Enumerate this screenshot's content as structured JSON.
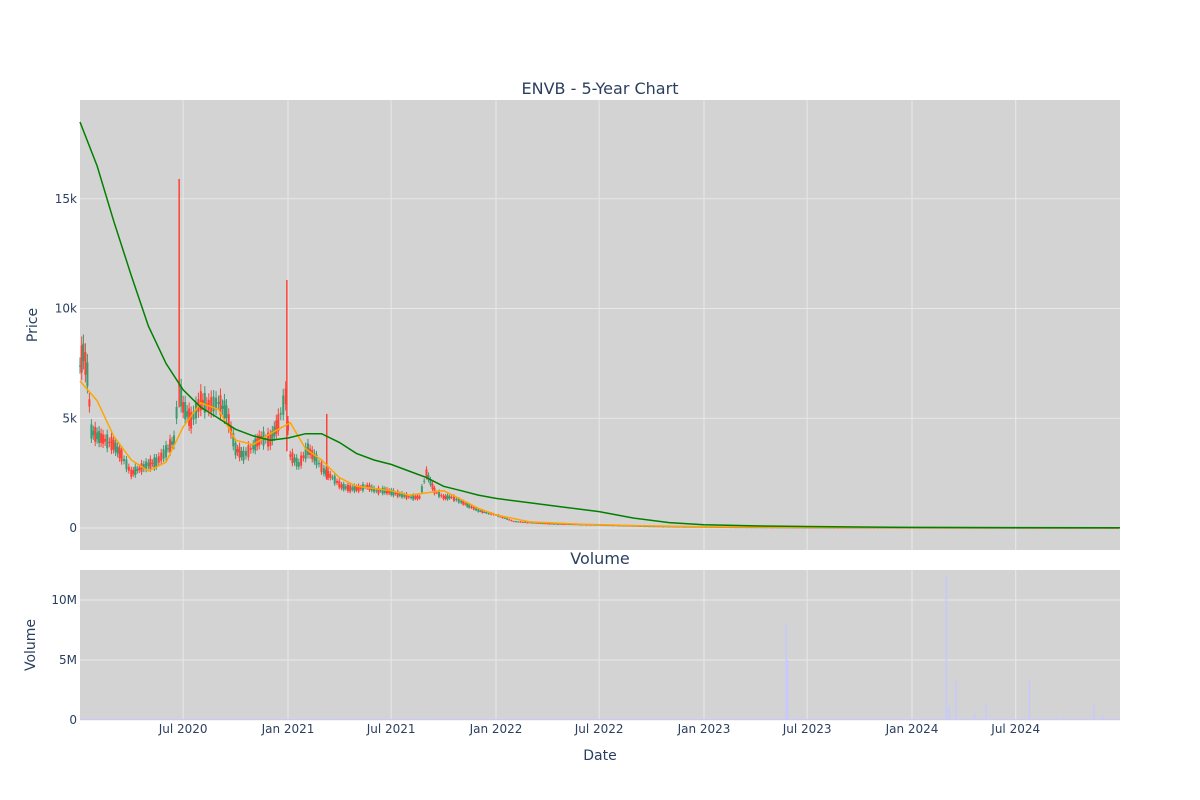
{
  "chart_data": [
    {
      "type": "candlestick",
      "title": "ENVB - 5-Year Chart",
      "ylabel": "Price",
      "xlabel": "",
      "x_range": [
        "2020-01-02",
        "2024-12-31"
      ],
      "ylim": [
        -1000,
        19500
      ],
      "y_ticks": [
        0,
        5000,
        10000,
        15000
      ],
      "y_tick_labels": [
        "0",
        "5k",
        "10k",
        "15k"
      ],
      "x_ticks": [
        "2020-07-01",
        "2021-01-01",
        "2021-07-01",
        "2022-01-01",
        "2022-07-01",
        "2023-01-01",
        "2023-07-01",
        "2024-01-01",
        "2024-07-01"
      ],
      "grid": true,
      "colors": {
        "background": "#d3d3d3",
        "grid": "#e8e8e8",
        "up": "#3d9970",
        "down": "#ff4136",
        "ma_short": "#ffa500",
        "ma_long": "#008000"
      },
      "price_series": [
        {
          "x": "2020-01-02",
          "y": 7400
        },
        {
          "x": "2020-01-08",
          "y": 8000
        },
        {
          "x": "2020-01-15",
          "y": 7000
        },
        {
          "x": "2020-01-22",
          "y": 4400
        },
        {
          "x": "2020-02-01",
          "y": 4200
        },
        {
          "x": "2020-02-15",
          "y": 4000
        },
        {
          "x": "2020-03-01",
          "y": 3800
        },
        {
          "x": "2020-03-15",
          "y": 3300
        },
        {
          "x": "2020-04-01",
          "y": 2500
        },
        {
          "x": "2020-04-15",
          "y": 2700
        },
        {
          "x": "2020-05-01",
          "y": 2900
        },
        {
          "x": "2020-05-15",
          "y": 3000
        },
        {
          "x": "2020-06-01",
          "y": 3500
        },
        {
          "x": "2020-06-15",
          "y": 4000
        },
        {
          "x": "2020-06-24",
          "y": 6500
        },
        {
          "x": "2020-07-01",
          "y": 5500
        },
        {
          "x": "2020-07-15",
          "y": 4900
        },
        {
          "x": "2020-08-01",
          "y": 5800
        },
        {
          "x": "2020-08-15",
          "y": 5600
        },
        {
          "x": "2020-09-01",
          "y": 5700
        },
        {
          "x": "2020-09-15",
          "y": 5300
        },
        {
          "x": "2020-10-01",
          "y": 3600
        },
        {
          "x": "2020-10-15",
          "y": 3300
        },
        {
          "x": "2020-11-01",
          "y": 3700
        },
        {
          "x": "2020-11-15",
          "y": 4100
        },
        {
          "x": "2020-12-01",
          "y": 4000
        },
        {
          "x": "2020-12-15",
          "y": 4800
        },
        {
          "x": "2020-12-28",
          "y": 6000
        },
        {
          "x": "2021-01-05",
          "y": 3300
        },
        {
          "x": "2021-01-20",
          "y": 2900
        },
        {
          "x": "2021-02-05",
          "y": 3600
        },
        {
          "x": "2021-02-20",
          "y": 3100
        },
        {
          "x": "2021-03-05",
          "y": 2600
        },
        {
          "x": "2021-03-20",
          "y": 2300
        },
        {
          "x": "2021-04-05",
          "y": 1900
        },
        {
          "x": "2021-04-20",
          "y": 1800
        },
        {
          "x": "2021-05-05",
          "y": 1800
        },
        {
          "x": "2021-05-20",
          "y": 1900
        },
        {
          "x": "2021-06-05",
          "y": 1700
        },
        {
          "x": "2021-06-20",
          "y": 1700
        },
        {
          "x": "2021-07-05",
          "y": 1600
        },
        {
          "x": "2021-07-20",
          "y": 1500
        },
        {
          "x": "2021-08-05",
          "y": 1400
        },
        {
          "x": "2021-08-20",
          "y": 1400
        },
        {
          "x": "2021-09-01",
          "y": 2500
        },
        {
          "x": "2021-09-15",
          "y": 1700
        },
        {
          "x": "2021-10-01",
          "y": 1400
        },
        {
          "x": "2021-10-15",
          "y": 1400
        },
        {
          "x": "2021-11-01",
          "y": 1200
        },
        {
          "x": "2021-11-15",
          "y": 1000
        },
        {
          "x": "2021-12-01",
          "y": 800
        },
        {
          "x": "2021-12-15",
          "y": 700
        },
        {
          "x": "2022-01-01",
          "y": 600
        },
        {
          "x": "2022-02-01",
          "y": 300
        },
        {
          "x": "2022-03-01",
          "y": 250
        },
        {
          "x": "2022-04-01",
          "y": 200
        },
        {
          "x": "2022-05-01",
          "y": 180
        },
        {
          "x": "2022-06-01",
          "y": 160
        },
        {
          "x": "2022-07-01",
          "y": 140
        },
        {
          "x": "2022-08-01",
          "y": 120
        },
        {
          "x": "2022-10-01",
          "y": 80
        },
        {
          "x": "2022-12-01",
          "y": 60
        },
        {
          "x": "2023-03-01",
          "y": 40
        },
        {
          "x": "2023-06-01",
          "y": 30
        },
        {
          "x": "2023-09-01",
          "y": 25
        },
        {
          "x": "2023-12-01",
          "y": 20
        },
        {
          "x": "2024-03-01",
          "y": 15
        },
        {
          "x": "2024-06-01",
          "y": 10
        },
        {
          "x": "2024-09-01",
          "y": 8
        },
        {
          "x": "2024-12-31",
          "y": 5
        }
      ],
      "spikes": [
        {
          "x": "2020-06-24",
          "high": 15900,
          "low": 5500
        },
        {
          "x": "2020-12-30",
          "high": 11300,
          "low": 3500
        },
        {
          "x": "2021-03-10",
          "high": 5200,
          "low": 2200
        }
      ],
      "ma_short": [
        {
          "x": "2020-01-02",
          "y": 6700
        },
        {
          "x": "2020-02-01",
          "y": 5800
        },
        {
          "x": "2020-03-01",
          "y": 4200
        },
        {
          "x": "2020-04-01",
          "y": 3100
        },
        {
          "x": "2020-05-01",
          "y": 2600
        },
        {
          "x": "2020-06-01",
          "y": 3000
        },
        {
          "x": "2020-07-01",
          "y": 4600
        },
        {
          "x": "2020-08-01",
          "y": 5700
        },
        {
          "x": "2020-09-01",
          "y": 5400
        },
        {
          "x": "2020-10-01",
          "y": 4000
        },
        {
          "x": "2020-11-01",
          "y": 3800
        },
        {
          "x": "2020-12-01",
          "y": 4300
        },
        {
          "x": "2021-01-05",
          "y": 4800
        },
        {
          "x": "2021-02-01",
          "y": 3600
        },
        {
          "x": "2021-03-01",
          "y": 3100
        },
        {
          "x": "2021-04-01",
          "y": 2300
        },
        {
          "x": "2021-05-01",
          "y": 1900
        },
        {
          "x": "2021-06-01",
          "y": 1800
        },
        {
          "x": "2021-07-01",
          "y": 1700
        },
        {
          "x": "2021-08-01",
          "y": 1500
        },
        {
          "x": "2021-09-01",
          "y": 1600
        },
        {
          "x": "2021-10-01",
          "y": 1700
        },
        {
          "x": "2021-11-01",
          "y": 1300
        },
        {
          "x": "2021-12-01",
          "y": 900
        },
        {
          "x": "2022-01-01",
          "y": 600
        },
        {
          "x": "2022-03-01",
          "y": 280
        },
        {
          "x": "2022-06-01",
          "y": 170
        },
        {
          "x": "2022-09-01",
          "y": 110
        },
        {
          "x": "2023-01-01",
          "y": 60
        },
        {
          "x": "2023-06-01",
          "y": 35
        },
        {
          "x": "2024-01-01",
          "y": 20
        },
        {
          "x": "2024-12-31",
          "y": 8
        }
      ],
      "ma_long": [
        {
          "x": "2020-01-02",
          "y": 18500
        },
        {
          "x": "2020-02-01",
          "y": 16500
        },
        {
          "x": "2020-03-01",
          "y": 14000
        },
        {
          "x": "2020-04-01",
          "y": 11500
        },
        {
          "x": "2020-05-01",
          "y": 9200
        },
        {
          "x": "2020-06-01",
          "y": 7500
        },
        {
          "x": "2020-07-01",
          "y": 6300
        },
        {
          "x": "2020-08-01",
          "y": 5500
        },
        {
          "x": "2020-09-01",
          "y": 5000
        },
        {
          "x": "2020-10-01",
          "y": 4500
        },
        {
          "x": "2020-11-01",
          "y": 4200
        },
        {
          "x": "2020-12-01",
          "y": 4000
        },
        {
          "x": "2021-01-01",
          "y": 4100
        },
        {
          "x": "2021-02-01",
          "y": 4300
        },
        {
          "x": "2021-03-01",
          "y": 4300
        },
        {
          "x": "2021-04-01",
          "y": 3900
        },
        {
          "x": "2021-05-01",
          "y": 3400
        },
        {
          "x": "2021-06-01",
          "y": 3100
        },
        {
          "x": "2021-07-01",
          "y": 2900
        },
        {
          "x": "2021-08-01",
          "y": 2600
        },
        {
          "x": "2021-09-01",
          "y": 2300
        },
        {
          "x": "2021-10-01",
          "y": 1900
        },
        {
          "x": "2021-11-01",
          "y": 1700
        },
        {
          "x": "2021-12-01",
          "y": 1500
        },
        {
          "x": "2022-01-01",
          "y": 1350
        },
        {
          "x": "2022-03-01",
          "y": 1150
        },
        {
          "x": "2022-05-01",
          "y": 950
        },
        {
          "x": "2022-07-01",
          "y": 750
        },
        {
          "x": "2022-09-01",
          "y": 450
        },
        {
          "x": "2022-11-01",
          "y": 250
        },
        {
          "x": "2023-01-01",
          "y": 150
        },
        {
          "x": "2023-04-01",
          "y": 100
        },
        {
          "x": "2023-07-01",
          "y": 70
        },
        {
          "x": "2023-10-01",
          "y": 50
        },
        {
          "x": "2024-01-01",
          "y": 30
        },
        {
          "x": "2024-07-01",
          "y": 20
        },
        {
          "x": "2024-12-31",
          "y": 15
        }
      ]
    },
    {
      "type": "bar",
      "title": "Volume",
      "ylabel": "Volume",
      "xlabel": "Date",
      "ylim": [
        0,
        12500000
      ],
      "y_ticks": [
        0,
        5000000,
        10000000
      ],
      "y_tick_labels": [
        "0",
        "5M",
        "10M"
      ],
      "x_tick_labels": [
        "Jul 2020",
        "Jan 2021",
        "Jul 2021",
        "Jan 2022",
        "Jul 2022",
        "Jan 2023",
        "Jul 2023",
        "Jan 2024",
        "Jul 2024"
      ],
      "colors": {
        "background": "#d3d3d3",
        "bar": "#c8c8ff"
      },
      "values": [
        {
          "x": "2021-03-10",
          "y": 120000
        },
        {
          "x": "2021-09-01",
          "y": 150000
        },
        {
          "x": "2022-09-01",
          "y": 100000
        },
        {
          "x": "2023-05-25",
          "y": 8000000
        },
        {
          "x": "2023-05-28",
          "y": 5000000
        },
        {
          "x": "2024-03-01",
          "y": 12000000
        },
        {
          "x": "2024-03-06",
          "y": 1200000
        },
        {
          "x": "2024-03-18",
          "y": 3300000
        },
        {
          "x": "2024-04-20",
          "y": 600000
        },
        {
          "x": "2024-05-10",
          "y": 1400000
        },
        {
          "x": "2024-07-25",
          "y": 3400000
        },
        {
          "x": "2024-09-10",
          "y": 300000
        },
        {
          "x": "2024-11-15",
          "y": 1300000
        },
        {
          "x": "2024-12-01",
          "y": 300000
        }
      ]
    }
  ]
}
